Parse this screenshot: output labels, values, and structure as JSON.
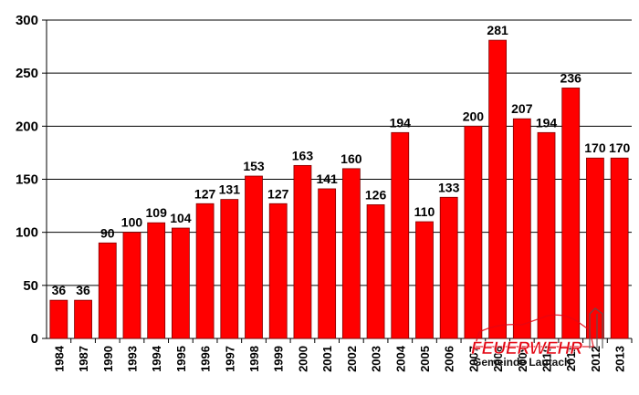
{
  "chart_data": {
    "type": "bar",
    "categories": [
      "1984",
      "1987",
      "1990",
      "1993",
      "1994",
      "1995",
      "1996",
      "1997",
      "1998",
      "1999",
      "2000",
      "2001",
      "2002",
      "2003",
      "2004",
      "2005",
      "2006",
      "2007",
      "2008",
      "2009",
      "2010",
      "2011",
      "2012",
      "2013"
    ],
    "values": [
      36,
      36,
      90,
      100,
      109,
      104,
      127,
      131,
      153,
      127,
      163,
      141,
      160,
      126,
      194,
      110,
      133,
      200,
      281,
      207,
      194,
      236,
      170,
      170
    ],
    "ylim": [
      0,
      300
    ],
    "yticks": [
      0,
      50,
      100,
      150,
      200,
      250,
      300
    ],
    "grid": true,
    "bar_color": "#FF0000",
    "bar_stroke": "#800000",
    "title": "",
    "xlabel": "",
    "ylabel": ""
  },
  "watermark": {
    "title": "FEUERWEHR",
    "subtitle": "Gemeinde Lautach",
    "color": "#E30613"
  }
}
